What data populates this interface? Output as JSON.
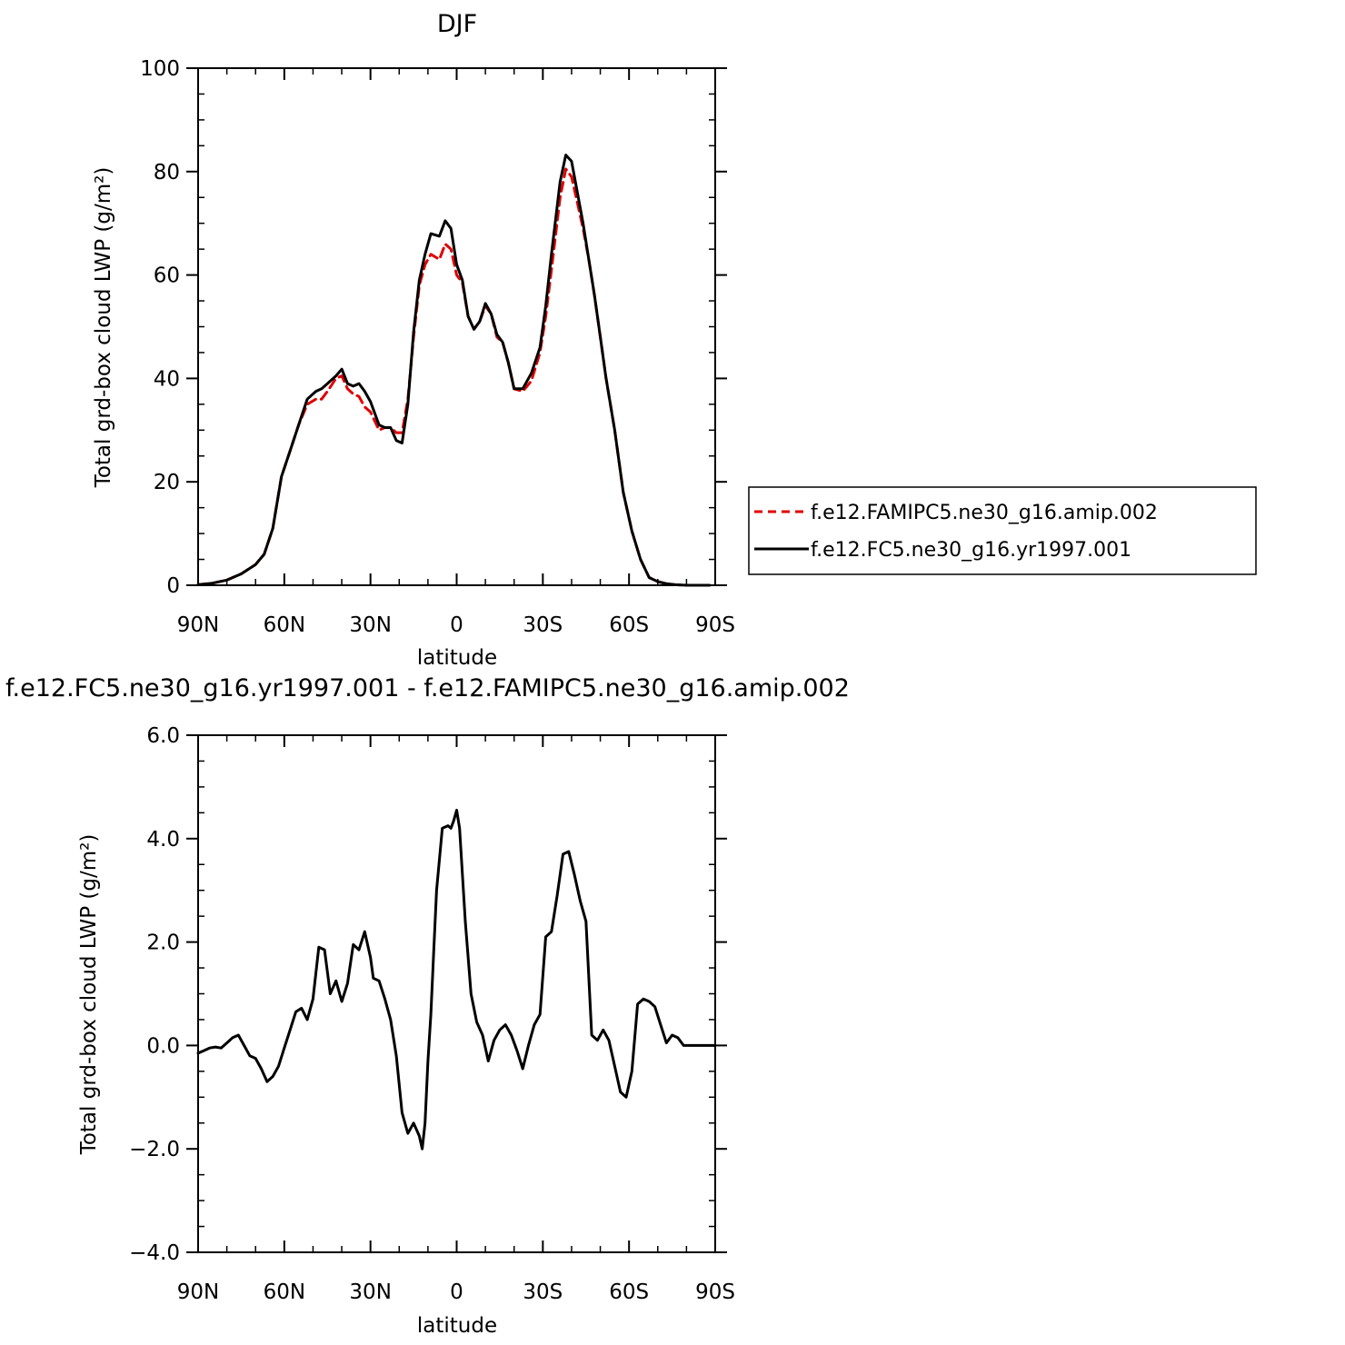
{
  "chart_data": [
    {
      "type": "line",
      "title": "DJF",
      "xlabel": "latitude",
      "ylabel": "Total grd-box cloud LWP (g/m²)",
      "xlim": [
        90,
        -90
      ],
      "ylim": [
        0,
        100
      ],
      "xtick_values": [
        90,
        60,
        30,
        0,
        -30,
        -60,
        -90
      ],
      "xtick_labels": [
        "90N",
        "60N",
        "30N",
        "0",
        "30S",
        "60S",
        "90S"
      ],
      "ytick_values": [
        0,
        20,
        40,
        60,
        80,
        100
      ],
      "ytick_labels": [
        "0",
        "20",
        "40",
        "60",
        "80",
        "100"
      ],
      "legend_position": "right",
      "series": [
        {
          "name": "f.e12.FAMIPC5.ne30_g16.amip.002",
          "color": "#e00000",
          "dash": "dashed",
          "x": [
            90,
            85,
            80,
            75,
            70,
            67,
            64,
            61,
            58,
            55,
            52,
            49,
            47,
            45,
            42,
            40,
            38,
            36,
            34,
            32,
            30,
            27,
            25,
            23,
            21,
            19,
            17,
            15,
            13,
            11,
            9,
            6,
            4,
            2,
            0,
            -2,
            -4,
            -6,
            -8,
            -10,
            -12,
            -14,
            -16,
            -18,
            -20,
            -23,
            -26,
            -29,
            -31,
            -33,
            -36,
            -38,
            -40,
            -42,
            -44,
            -46,
            -48,
            -50,
            -52,
            -55,
            -58,
            -61,
            -64,
            -67,
            -70,
            -73,
            -76,
            -80,
            -84,
            -88
          ],
          "y": [
            0.1,
            0.4,
            1.0,
            2.2,
            4.0,
            6.0,
            11.0,
            21.0,
            26.0,
            31.0,
            35.0,
            36.0,
            36.0,
            37.5,
            40.0,
            40.5,
            38.0,
            37.0,
            36.5,
            34.5,
            33.5,
            30.0,
            30.5,
            30.5,
            29.5,
            29.5,
            36.0,
            48.0,
            58.0,
            62.0,
            64.0,
            63.0,
            66.0,
            65.0,
            60.0,
            58.5,
            52.0,
            49.5,
            51.0,
            54.0,
            52.5,
            48.0,
            47.0,
            43.0,
            38.0,
            37.5,
            39.5,
            45.0,
            52.0,
            61.0,
            75.0,
            80.5,
            79.0,
            74.0,
            69.0,
            63.0,
            56.0,
            48.0,
            40.0,
            30.0,
            18.0,
            10.5,
            5.0,
            1.5,
            0.7,
            0.3,
            0.1,
            0.0,
            0.0,
            0.0
          ]
        },
        {
          "name": "f.e12.FC5.ne30_g16.yr1997.001",
          "color": "#000000",
          "dash": "solid",
          "x": [
            90,
            85,
            80,
            75,
            70,
            67,
            64,
            61,
            58,
            55,
            52,
            49,
            47,
            45,
            42,
            40,
            38,
            36,
            34,
            32,
            30,
            27,
            25,
            23,
            21,
            19,
            17,
            15,
            13,
            11,
            9,
            6,
            4,
            2,
            0,
            -2,
            -4,
            -6,
            -8,
            -10,
            -12,
            -14,
            -16,
            -18,
            -20,
            -23,
            -26,
            -29,
            -31,
            -33,
            -36,
            -38,
            -40,
            -42,
            -44,
            -46,
            -48,
            -50,
            -52,
            -55,
            -58,
            -61,
            -64,
            -67,
            -70,
            -73,
            -76,
            -80,
            -84,
            -88
          ],
          "y": [
            0.1,
            0.4,
            1.0,
            2.2,
            4.0,
            6.0,
            11.0,
            21.0,
            26.0,
            31.0,
            36.0,
            37.5,
            38.0,
            39.0,
            40.5,
            41.8,
            39.0,
            38.5,
            39.0,
            37.5,
            35.5,
            31.0,
            30.5,
            30.5,
            28.0,
            27.5,
            35.0,
            49.0,
            59.0,
            64.0,
            68.0,
            67.5,
            70.5,
            69.0,
            62.0,
            59.0,
            52.0,
            49.5,
            51.0,
            54.5,
            52.5,
            48.5,
            47.0,
            43.0,
            38.0,
            38.0,
            41.0,
            46.0,
            54.0,
            64.0,
            78.0,
            83.2,
            82.0,
            76.0,
            70.0,
            63.0,
            56.0,
            48.0,
            40.0,
            30.0,
            18.0,
            10.5,
            5.0,
            1.5,
            0.7,
            0.3,
            0.1,
            0.0,
            0.0,
            0.0
          ]
        }
      ]
    },
    {
      "type": "line",
      "title": "f.e12.FC5.ne30_g16.yr1997.001 - f.e12.FAMIPC5.ne30_g16.amip.002",
      "xlabel": "latitude",
      "ylabel": "Total grd-box cloud LWP (g/m²)",
      "xlim": [
        90,
        -90
      ],
      "ylim": [
        -4,
        6
      ],
      "xtick_values": [
        90,
        60,
        30,
        0,
        -30,
        -60,
        -90
      ],
      "xtick_labels": [
        "90N",
        "60N",
        "30N",
        "0",
        "30S",
        "60S",
        "90S"
      ],
      "ytick_values": [
        -4,
        -2,
        0,
        2,
        4,
        6
      ],
      "ytick_labels": [
        "−4.0",
        "−2.0",
        "0.0",
        "2.0",
        "4.0",
        "6.0"
      ],
      "series": [
        {
          "color": "#000000",
          "x": [
            90,
            88,
            86,
            84,
            82,
            80,
            78,
            76,
            74,
            72,
            70,
            68,
            66,
            64,
            62,
            60,
            58,
            56,
            54,
            52,
            50,
            48,
            46,
            44,
            42,
            40,
            38,
            36,
            34,
            32,
            30,
            29,
            27,
            25,
            23,
            21,
            19,
            17,
            15,
            13,
            12,
            11,
            10,
            9,
            8,
            7,
            5,
            3,
            2,
            1,
            0,
            -1,
            -3,
            -5,
            -7,
            -9,
            -11,
            -13,
            -15,
            -17,
            -19,
            -21,
            -23,
            -25,
            -27,
            -29,
            -31,
            -33,
            -35,
            -37,
            -39,
            -41,
            -43,
            -45,
            -47,
            -49,
            -51,
            -53,
            -55,
            -57,
            -59,
            -61,
            -63,
            -65,
            -67,
            -69,
            -71,
            -73,
            -75,
            -77,
            -79,
            -81,
            -83,
            -85,
            -87,
            -90
          ],
          "y": [
            -0.15,
            -0.1,
            -0.05,
            -0.03,
            -0.05,
            0.05,
            0.15,
            0.2,
            0.0,
            -0.2,
            -0.25,
            -0.45,
            -0.7,
            -0.6,
            -0.4,
            -0.05,
            0.3,
            0.65,
            0.72,
            0.5,
            0.9,
            1.9,
            1.85,
            1.0,
            1.25,
            0.85,
            1.2,
            1.95,
            1.85,
            2.2,
            1.7,
            1.3,
            1.25,
            0.9,
            0.5,
            -0.2,
            -1.3,
            -1.7,
            -1.5,
            -1.75,
            -2.0,
            -1.5,
            -0.3,
            0.6,
            1.8,
            3.0,
            4.2,
            4.25,
            4.2,
            4.35,
            4.55,
            4.2,
            2.4,
            1.0,
            0.45,
            0.2,
            -0.3,
            0.1,
            0.3,
            0.4,
            0.2,
            -0.1,
            -0.45,
            0.0,
            0.4,
            0.6,
            2.1,
            2.2,
            2.9,
            3.7,
            3.75,
            3.3,
            2.8,
            2.4,
            0.2,
            0.1,
            0.3,
            0.1,
            -0.4,
            -0.9,
            -1.0,
            -0.5,
            0.8,
            0.9,
            0.85,
            0.75,
            0.4,
            0.05,
            0.2,
            0.15,
            0.0,
            0.0,
            0.0,
            0.0,
            0.0,
            0.0
          ]
        }
      ]
    }
  ]
}
